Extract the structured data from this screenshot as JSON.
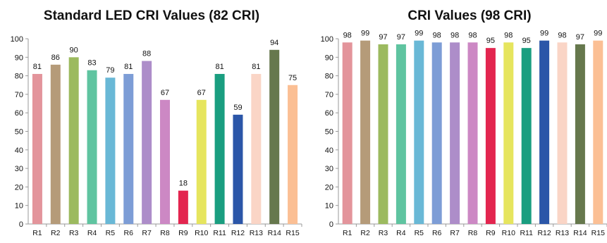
{
  "chart_data": [
    {
      "type": "bar",
      "title": "Standard LED CRI Values (82 CRI)",
      "xlabel": "",
      "ylabel": "",
      "ylim": [
        0,
        100
      ],
      "yticks": [
        0,
        10,
        20,
        30,
        40,
        50,
        60,
        70,
        80,
        90,
        100
      ],
      "categories": [
        "R1",
        "R2",
        "R3",
        "R4",
        "R5",
        "R6",
        "R7",
        "R8",
        "R9",
        "R10",
        "R11",
        "R12",
        "R13",
        "R14",
        "R15"
      ],
      "values": [
        81,
        86,
        90,
        83,
        79,
        81,
        88,
        67,
        18,
        67,
        81,
        59,
        81,
        94,
        75
      ],
      "colors": [
        "#e3949b",
        "#b59b79",
        "#9cba5f",
        "#5fc4a0",
        "#69b8d6",
        "#7d9dd6",
        "#ad8dc9",
        "#cc88c4",
        "#e3254f",
        "#e6e55e",
        "#1a9e80",
        "#2b56a8",
        "#fad5c6",
        "#66784d",
        "#fbbf94"
      ],
      "grid": false,
      "legend": "none"
    },
    {
      "type": "bar",
      "title": "CRI Values (98 CRI)",
      "xlabel": "",
      "ylabel": "",
      "ylim": [
        0,
        100
      ],
      "yticks": [
        0,
        10,
        20,
        30,
        40,
        50,
        60,
        70,
        80,
        90,
        100
      ],
      "categories": [
        "R1",
        "R2",
        "R3",
        "R4",
        "R5",
        "R6",
        "R7",
        "R8",
        "R9",
        "R10",
        "R11",
        "R12",
        "R13",
        "R14",
        "R15"
      ],
      "values": [
        98,
        99,
        97,
        97,
        99,
        98,
        98,
        98,
        95,
        98,
        95,
        99,
        98,
        97,
        99
      ],
      "colors": [
        "#e3949b",
        "#b59b79",
        "#9cba5f",
        "#5fc4a0",
        "#69b8d6",
        "#7d9dd6",
        "#ad8dc9",
        "#cc88c4",
        "#e3254f",
        "#e6e55e",
        "#1a9e80",
        "#2b56a8",
        "#fad5c6",
        "#66784d",
        "#fbbf94"
      ],
      "grid": false,
      "legend": "none"
    }
  ]
}
